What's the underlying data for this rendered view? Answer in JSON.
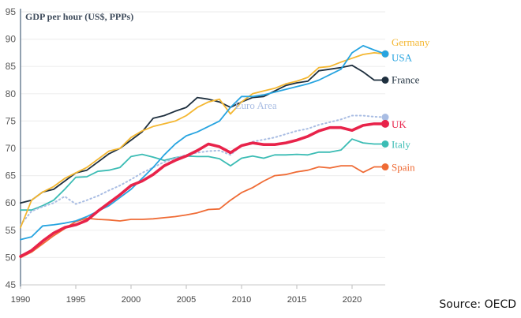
{
  "chart_data": {
    "type": "line",
    "title": "GDP per hour (US$, PPPs)",
    "xlabel": "",
    "ylabel": "",
    "source": "Source: OECD",
    "ylim": [
      45,
      95
    ],
    "yticks": [
      45,
      50,
      55,
      60,
      65,
      70,
      75,
      80,
      85,
      90,
      95
    ],
    "xlim": [
      1990,
      2023
    ],
    "xticks": [
      1990,
      1995,
      2000,
      2005,
      2010,
      2015,
      2020
    ],
    "grid": "horizontal",
    "legend": "inline-right",
    "x": [
      1990,
      1991,
      1992,
      1993,
      1994,
      1995,
      1996,
      1997,
      1998,
      1999,
      2000,
      2001,
      2002,
      2003,
      2004,
      2005,
      2006,
      2007,
      2008,
      2009,
      2010,
      2011,
      2012,
      2013,
      2014,
      2015,
      2016,
      2017,
      2018,
      2019,
      2020,
      2021,
      2022,
      2023
    ],
    "series": [
      {
        "name": "Spain",
        "color": "#ef6b35",
        "style": "solid",
        "width": "normal",
        "values": [
          50,
          51,
          52.5,
          54,
          55.3,
          56.6,
          57.2,
          57,
          56.9,
          56.7,
          57,
          57,
          57.1,
          57.3,
          57.5,
          57.8,
          58.2,
          58.8,
          58.9,
          60.5,
          61.9,
          62.8,
          64,
          65,
          65.2,
          65.7,
          66,
          66.6,
          66.4,
          66.8,
          66.8,
          65.6,
          66.6,
          66.6
        ]
      },
      {
        "name": "Italy",
        "color": "#3bbcb4",
        "style": "solid",
        "width": "normal",
        "values": [
          58.7,
          58.7,
          59.5,
          60.5,
          62.5,
          64.7,
          64.8,
          65.8,
          66,
          66.5,
          68.5,
          68.9,
          68.4,
          67.8,
          68.3,
          68.6,
          68.5,
          68.5,
          68.1,
          66.8,
          68.2,
          68.6,
          68.2,
          68.8,
          68.8,
          68.9,
          68.8,
          69.3,
          69.3,
          69.7,
          71.7,
          71,
          70.8,
          70.8
        ]
      },
      {
        "name": "Euro Area",
        "color": "#a9bde3",
        "style": "dotted",
        "width": "normal",
        "values": [
          56,
          58.5,
          59.3,
          60,
          61.2,
          59.8,
          60.5,
          61.3,
          62.3,
          63.2,
          64.3,
          65.5,
          66.5,
          67.5,
          68.2,
          68.8,
          69.2,
          69.5,
          69.6,
          68.8,
          70.5,
          71.2,
          71.6,
          72,
          72.6,
          73.2,
          73.6,
          74.3,
          74.8,
          75.3,
          76,
          76,
          75.8,
          75.7
        ]
      },
      {
        "name": "France",
        "color": "#1e2f3e",
        "style": "solid",
        "width": "normal",
        "values": [
          60,
          60.5,
          62,
          62.5,
          64,
          65.5,
          66,
          67.5,
          69,
          70,
          71.5,
          73,
          75.5,
          76,
          76.8,
          77.5,
          79.3,
          79,
          78.5,
          77.5,
          78.5,
          79.3,
          79.5,
          80.5,
          81.5,
          82,
          82.3,
          84.2,
          84.5,
          84.8,
          85.2,
          84,
          82.5,
          82.5
        ]
      },
      {
        "name": "Germany",
        "color": "#f4b731",
        "style": "solid",
        "width": "normal",
        "values": [
          55.5,
          60.5,
          62,
          63,
          64.5,
          65.5,
          66.5,
          68,
          69.5,
          70,
          72,
          73.2,
          74,
          74.5,
          75,
          76,
          77.5,
          78.5,
          79,
          76.3,
          78.5,
          80,
          80.5,
          81,
          81.8,
          82.3,
          83,
          84.8,
          85,
          85.8,
          86.5,
          87.2,
          87.5,
          87.3
        ]
      },
      {
        "name": "USA",
        "color": "#27a4e0",
        "style": "solid",
        "width": "normal",
        "values": [
          53.3,
          53.8,
          55.8,
          56,
          56.3,
          56.7,
          57.5,
          58.5,
          59.5,
          61,
          62.5,
          64.5,
          66.5,
          68.8,
          70.8,
          72.3,
          73,
          74,
          75,
          77.5,
          79.5,
          79.5,
          79.8,
          80.3,
          80.8,
          81.3,
          81.8,
          82.5,
          83.5,
          84.5,
          87.5,
          88.8,
          88,
          87.3
        ]
      },
      {
        "name": "UK",
        "color": "#e8234a",
        "style": "solid",
        "width": "thick",
        "values": [
          50.2,
          51.3,
          53,
          54.5,
          55.5,
          56,
          56.8,
          58.5,
          60,
          61.5,
          63.2,
          64,
          65.2,
          66.8,
          67.8,
          68.6,
          69.6,
          70.8,
          70.3,
          69.2,
          70.5,
          71,
          70.7,
          70.7,
          71,
          71.5,
          72.2,
          73.2,
          73.8,
          73.8,
          73.3,
          74.2,
          74.5,
          74.5
        ]
      }
    ],
    "annotations": [
      {
        "series": "Germany",
        "text": "Germany"
      },
      {
        "series": "USA",
        "text": "USA"
      },
      {
        "series": "France",
        "text": "France"
      },
      {
        "series": "Euro Area",
        "text": "Euro Area"
      },
      {
        "series": "UK",
        "text": "UK"
      },
      {
        "series": "Italy",
        "text": "Italy"
      },
      {
        "series": "Spain",
        "text": "Spain"
      }
    ]
  }
}
